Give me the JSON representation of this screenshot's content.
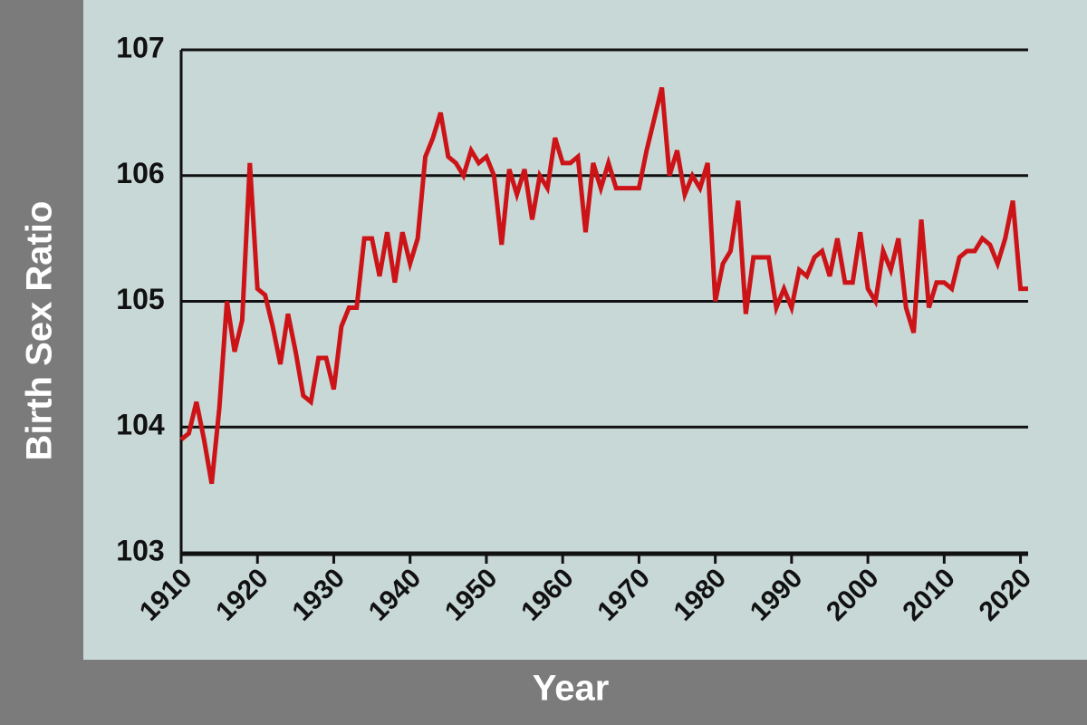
{
  "chart_data": {
    "type": "line",
    "x_label": "Year",
    "y_label": "Birth Sex Ratio",
    "x": [
      1910,
      1911,
      1912,
      1913,
      1914,
      1915,
      1916,
      1917,
      1918,
      1919,
      1920,
      1921,
      1922,
      1923,
      1924,
      1925,
      1926,
      1927,
      1928,
      1929,
      1930,
      1931,
      1932,
      1933,
      1934,
      1935,
      1936,
      1937,
      1938,
      1939,
      1940,
      1941,
      1942,
      1943,
      1944,
      1945,
      1946,
      1947,
      1948,
      1949,
      1950,
      1951,
      1952,
      1953,
      1954,
      1955,
      1956,
      1957,
      1958,
      1959,
      1960,
      1961,
      1962,
      1963,
      1964,
      1965,
      1966,
      1967,
      1968,
      1969,
      1970,
      1971,
      1972,
      1973,
      1974,
      1975,
      1976,
      1977,
      1978,
      1979,
      1980,
      1981,
      1982,
      1983,
      1984,
      1985,
      1986,
      1987,
      1988,
      1989,
      1990,
      1991,
      1992,
      1993,
      1994,
      1995,
      1996,
      1997,
      1998,
      1999,
      2000,
      2001,
      2002,
      2003,
      2004,
      2005,
      2006,
      2007,
      2008,
      2009,
      2010,
      2011,
      2012,
      2013,
      2014,
      2015,
      2016,
      2017,
      2018,
      2019,
      2020,
      2021
    ],
    "series": [
      {
        "color": "#cc1418",
        "values": [
          103.9,
          103.95,
          104.2,
          103.9,
          103.55,
          104.15,
          105.0,
          104.6,
          104.85,
          106.1,
          105.1,
          105.05,
          104.8,
          104.5,
          104.9,
          104.6,
          104.25,
          104.2,
          104.55,
          104.55,
          104.3,
          104.8,
          104.95,
          104.95,
          105.5,
          105.5,
          105.2,
          105.55,
          105.15,
          105.55,
          105.3,
          105.5,
          106.15,
          106.3,
          106.5,
          106.15,
          106.1,
          106.0,
          106.2,
          106.1,
          106.15,
          106.0,
          105.45,
          106.05,
          105.85,
          106.05,
          105.65,
          106.0,
          105.9,
          106.3,
          106.1,
          106.1,
          106.15,
          105.55,
          106.1,
          105.9,
          106.1,
          105.9,
          105.9,
          105.9,
          105.9,
          106.2,
          106.45,
          106.7,
          106.0,
          106.2,
          105.85,
          106.0,
          105.9,
          106.1,
          105.0,
          105.3,
          105.4,
          105.8,
          104.9,
          105.35,
          105.35,
          105.35,
          104.95,
          105.1,
          104.95,
          105.25,
          105.2,
          105.35,
          105.4,
          105.2,
          105.5,
          105.15,
          105.15,
          105.55,
          105.1,
          105.0,
          105.4,
          105.25,
          105.5,
          104.95,
          104.75,
          105.65,
          104.95,
          105.15,
          105.15,
          105.1,
          105.35,
          105.4,
          105.4,
          105.5,
          105.45,
          105.3,
          105.5,
          105.8,
          105.1,
          105.1
        ]
      }
    ],
    "xlim": [
      1910,
      2021
    ],
    "xticks": [
      1910,
      1920,
      1930,
      1940,
      1950,
      1960,
      1970,
      1980,
      1990,
      2000,
      2010,
      2020
    ],
    "ylim": [
      103,
      107
    ],
    "yticks": [
      103,
      104,
      105,
      106,
      107
    ],
    "grid": true
  }
}
